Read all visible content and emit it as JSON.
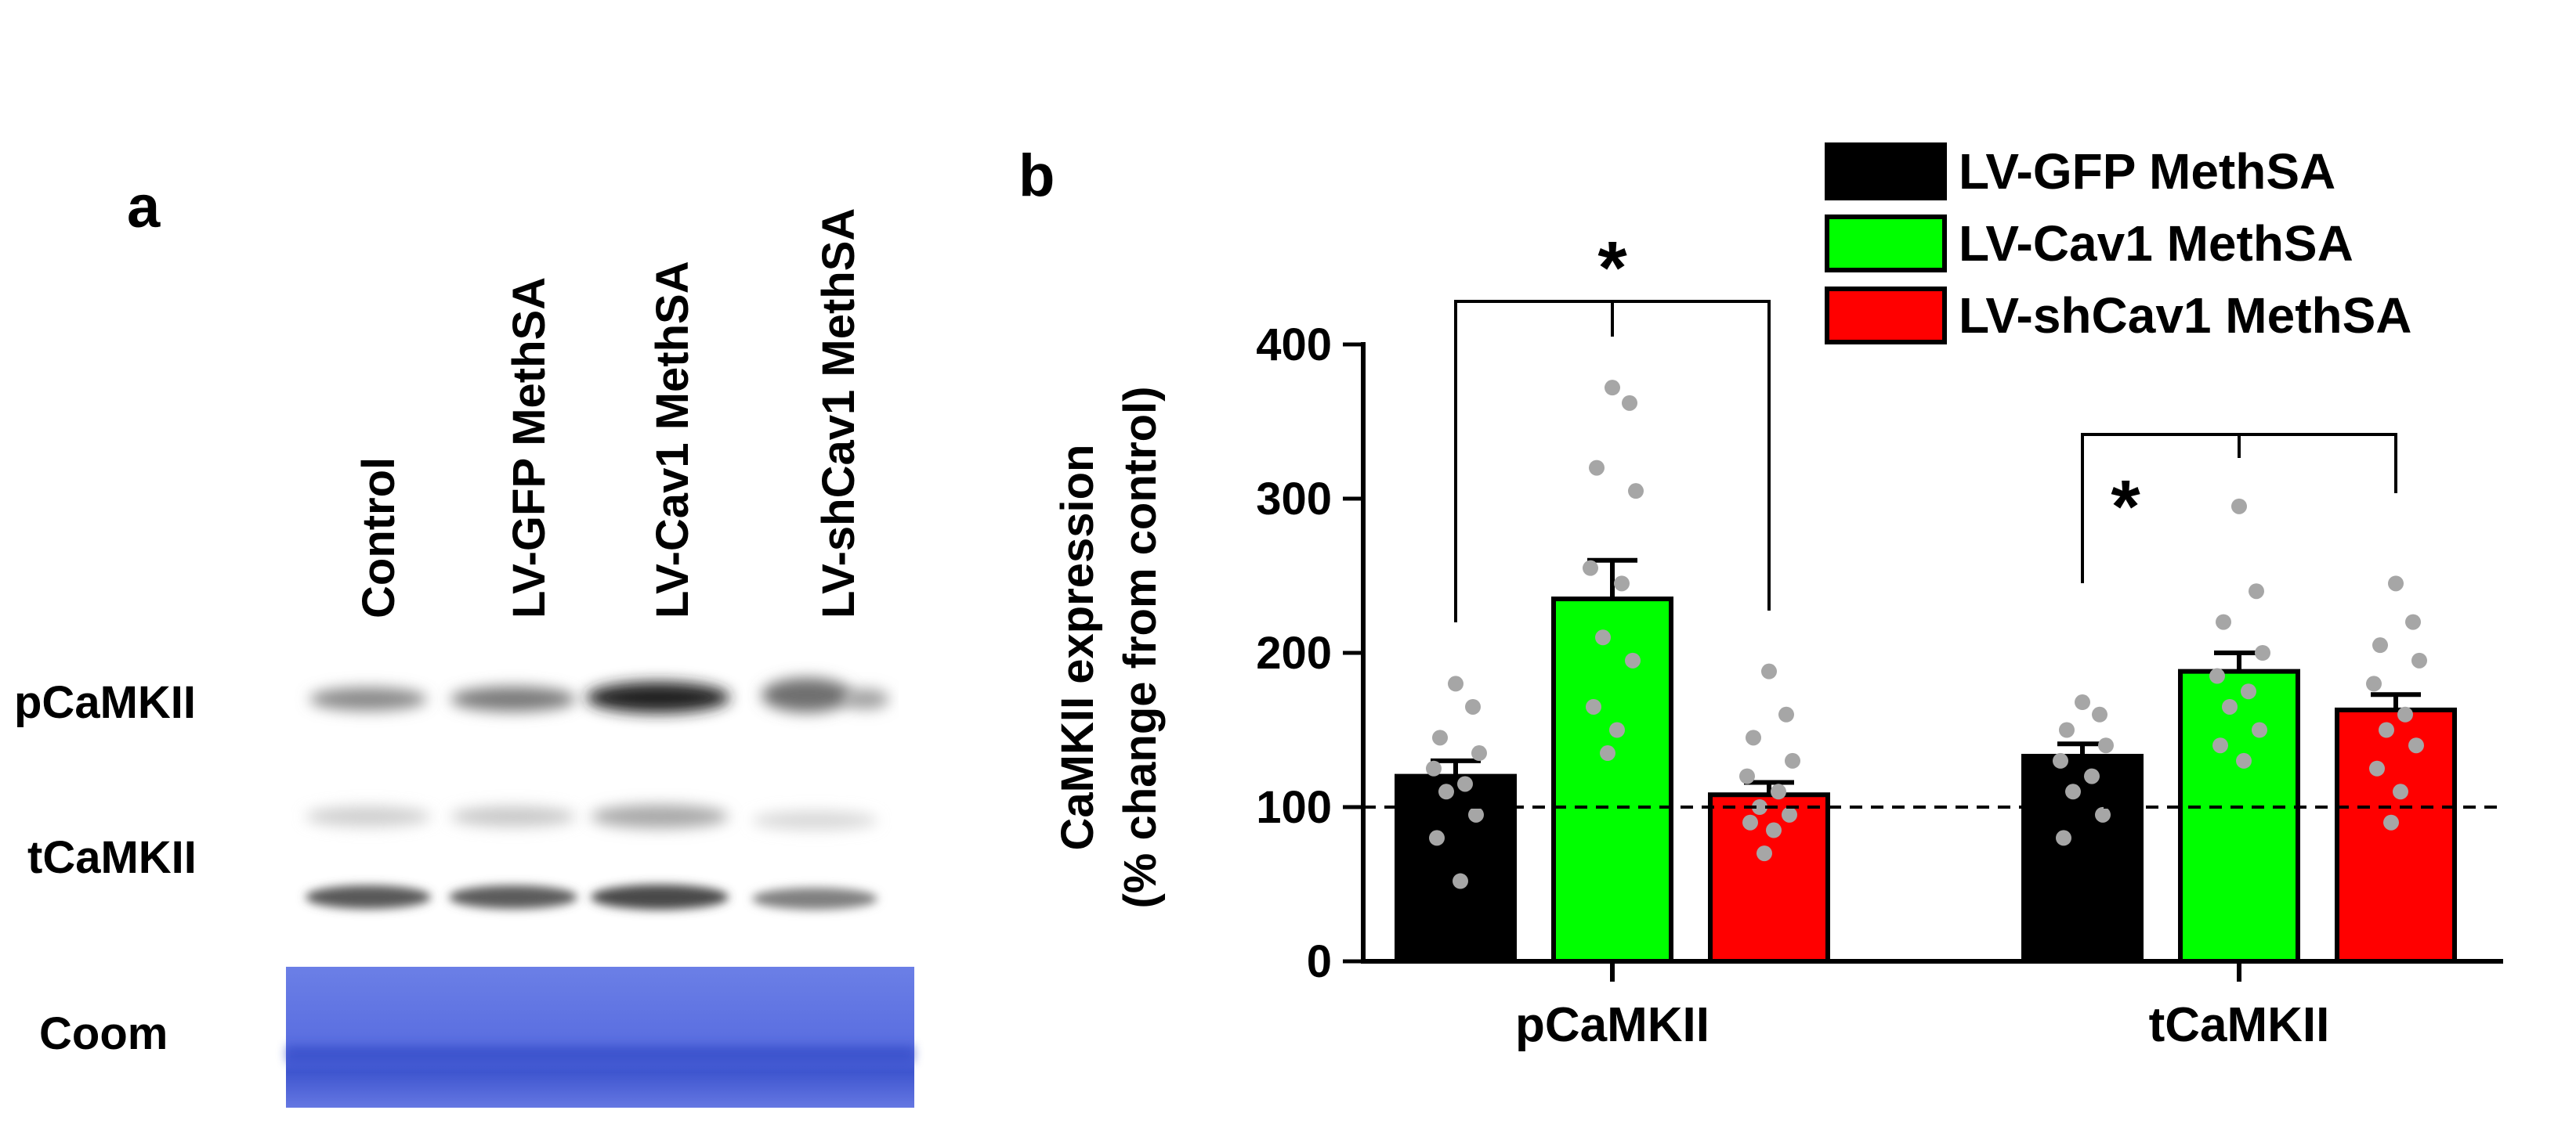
{
  "panels": {
    "a": "a",
    "b": "b"
  },
  "blot": {
    "lanes": [
      "Control",
      "LV-GFP MethSA",
      "LV-Cav1 MethSA",
      "LV-shCav1 MethSA"
    ],
    "rows": [
      "pCaMKII",
      "tCaMKII",
      "Coom"
    ]
  },
  "chart_data": {
    "type": "bar",
    "ylabel": "CaMKII expression",
    "ylabel2": "(% change from control)",
    "xlabel": "",
    "ylim": [
      0,
      400
    ],
    "yticks": [
      0,
      100,
      200,
      300,
      400
    ],
    "categories": [
      "pCaMKII",
      "tCaMKII"
    ],
    "reference_line": 100,
    "legend_position": "top-right",
    "significance_label": "*",
    "series": [
      {
        "name": "LV-GFP MethSA",
        "color": "#000000",
        "values": [
          120,
          133
        ],
        "sem": [
          10,
          8
        ],
        "points": [
          [
            180,
            165,
            145,
            135,
            125,
            115,
            110,
            95,
            80,
            52
          ],
          [
            168,
            160,
            150,
            140,
            130,
            120,
            110,
            95,
            80
          ]
        ]
      },
      {
        "name": "LV-Cav1 MethSA",
        "color": "#00ff00",
        "values": [
          235,
          188
        ],
        "sem": [
          25,
          12
        ],
        "points": [
          [
            372,
            362,
            320,
            305,
            255,
            245,
            210,
            195,
            165,
            150,
            135
          ],
          [
            295,
            240,
            220,
            200,
            185,
            175,
            165,
            150,
            140,
            130
          ]
        ]
      },
      {
        "name": "LV-shCav1 MethSA",
        "color": "#ff0000",
        "values": [
          108,
          163
        ],
        "sem": [
          8,
          10
        ],
        "points": [
          [
            188,
            160,
            145,
            130,
            120,
            110,
            100,
            95,
            90,
            85,
            70
          ],
          [
            245,
            220,
            205,
            195,
            180,
            160,
            150,
            140,
            125,
            110,
            90
          ]
        ]
      }
    ],
    "comparisons": [
      {
        "category": 0,
        "from": 0,
        "to": [
          1,
          2
        ]
      },
      {
        "category": 1,
        "from": 0,
        "to": [
          1,
          2
        ]
      }
    ]
  }
}
